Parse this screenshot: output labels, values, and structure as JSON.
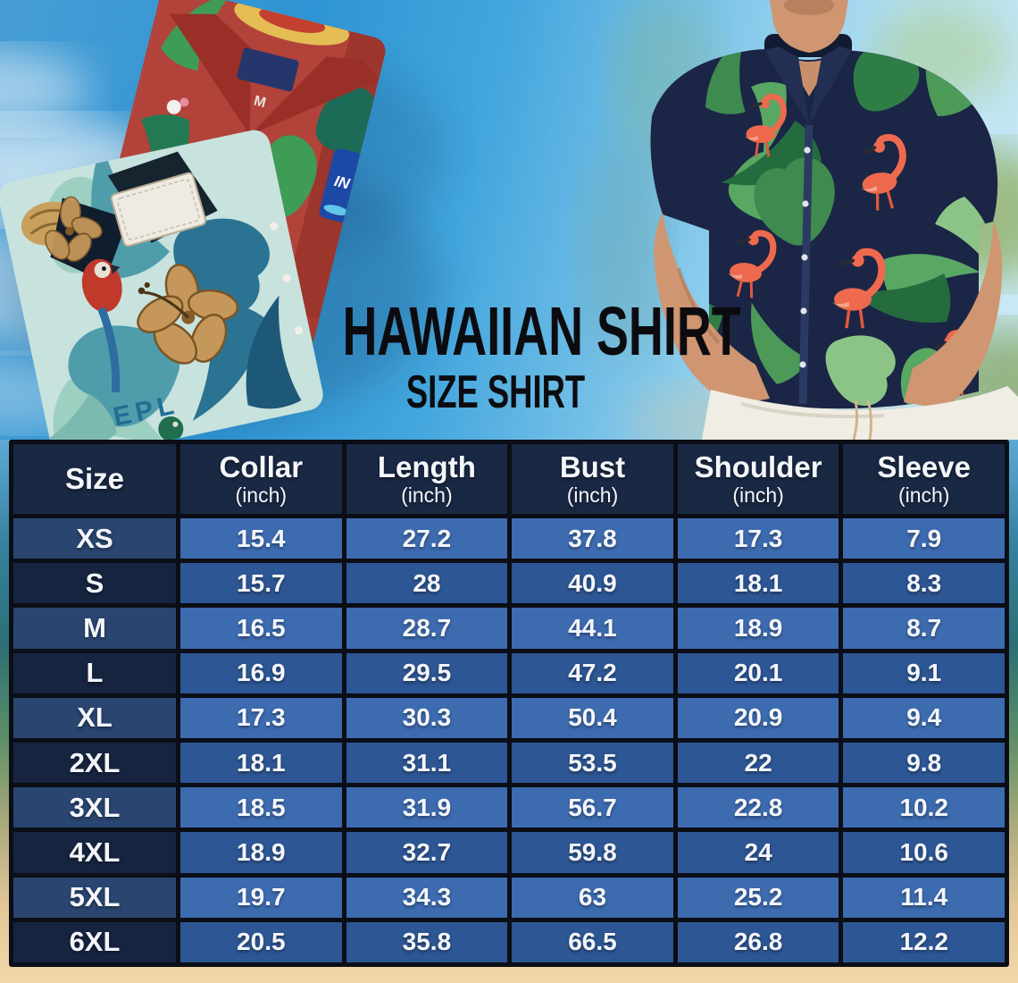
{
  "title": {
    "main": "HAWAIIAN SHIRT",
    "sub": "SIZE SHIRT"
  },
  "chart_data": {
    "type": "table",
    "title": "HAWAIIAN SHIRT SIZE SHIRT",
    "columns": [
      {
        "label": "Size",
        "unit": ""
      },
      {
        "label": "Collar",
        "unit": "(inch)"
      },
      {
        "label": "Length",
        "unit": "(inch)"
      },
      {
        "label": "Bust",
        "unit": "(inch)"
      },
      {
        "label": "Shoulder",
        "unit": "(inch)"
      },
      {
        "label": "Sleeve",
        "unit": "(inch)"
      }
    ],
    "rows": [
      {
        "size": "XS",
        "values": [
          "15.4",
          "27.2",
          "37.8",
          "17.3",
          "7.9"
        ]
      },
      {
        "size": "S",
        "values": [
          "15.7",
          "28",
          "40.9",
          "18.1",
          "8.3"
        ]
      },
      {
        "size": "M",
        "values": [
          "16.5",
          "28.7",
          "44.1",
          "18.9",
          "8.7"
        ]
      },
      {
        "size": "L",
        "values": [
          "16.9",
          "29.5",
          "47.2",
          "20.1",
          "9.1"
        ]
      },
      {
        "size": "XL",
        "values": [
          "17.3",
          "30.3",
          "50.4",
          "20.9",
          "9.4"
        ]
      },
      {
        "size": "2XL",
        "values": [
          "18.1",
          "31.1",
          "53.5",
          "22",
          "9.8"
        ]
      },
      {
        "size": "3XL",
        "values": [
          "18.5",
          "31.9",
          "56.7",
          "22.8",
          "10.2"
        ]
      },
      {
        "size": "4XL",
        "values": [
          "18.9",
          "32.7",
          "59.8",
          "24",
          "10.6"
        ]
      },
      {
        "size": "5XL",
        "values": [
          "19.7",
          "34.3",
          "63",
          "25.2",
          "11.4"
        ]
      },
      {
        "size": "6XL",
        "values": [
          "20.5",
          "35.8",
          "66.5",
          "26.8",
          "12.2"
        ]
      }
    ]
  },
  "decor": {
    "red_shirt_size_tag": "M",
    "red_shirt_logo": "IN",
    "teal_shirt_print": "EPL"
  },
  "colors": {
    "header_bg": "#192843",
    "row_value_light": "#3d6bb0",
    "row_value_dark": "#2d5694",
    "row_size_light": "#294570",
    "row_size_dark": "#162440",
    "table_border": "#0b0e16",
    "title_text": "#0c0c10",
    "sand": "#f2d9a9",
    "sky": "#2f94d3"
  }
}
